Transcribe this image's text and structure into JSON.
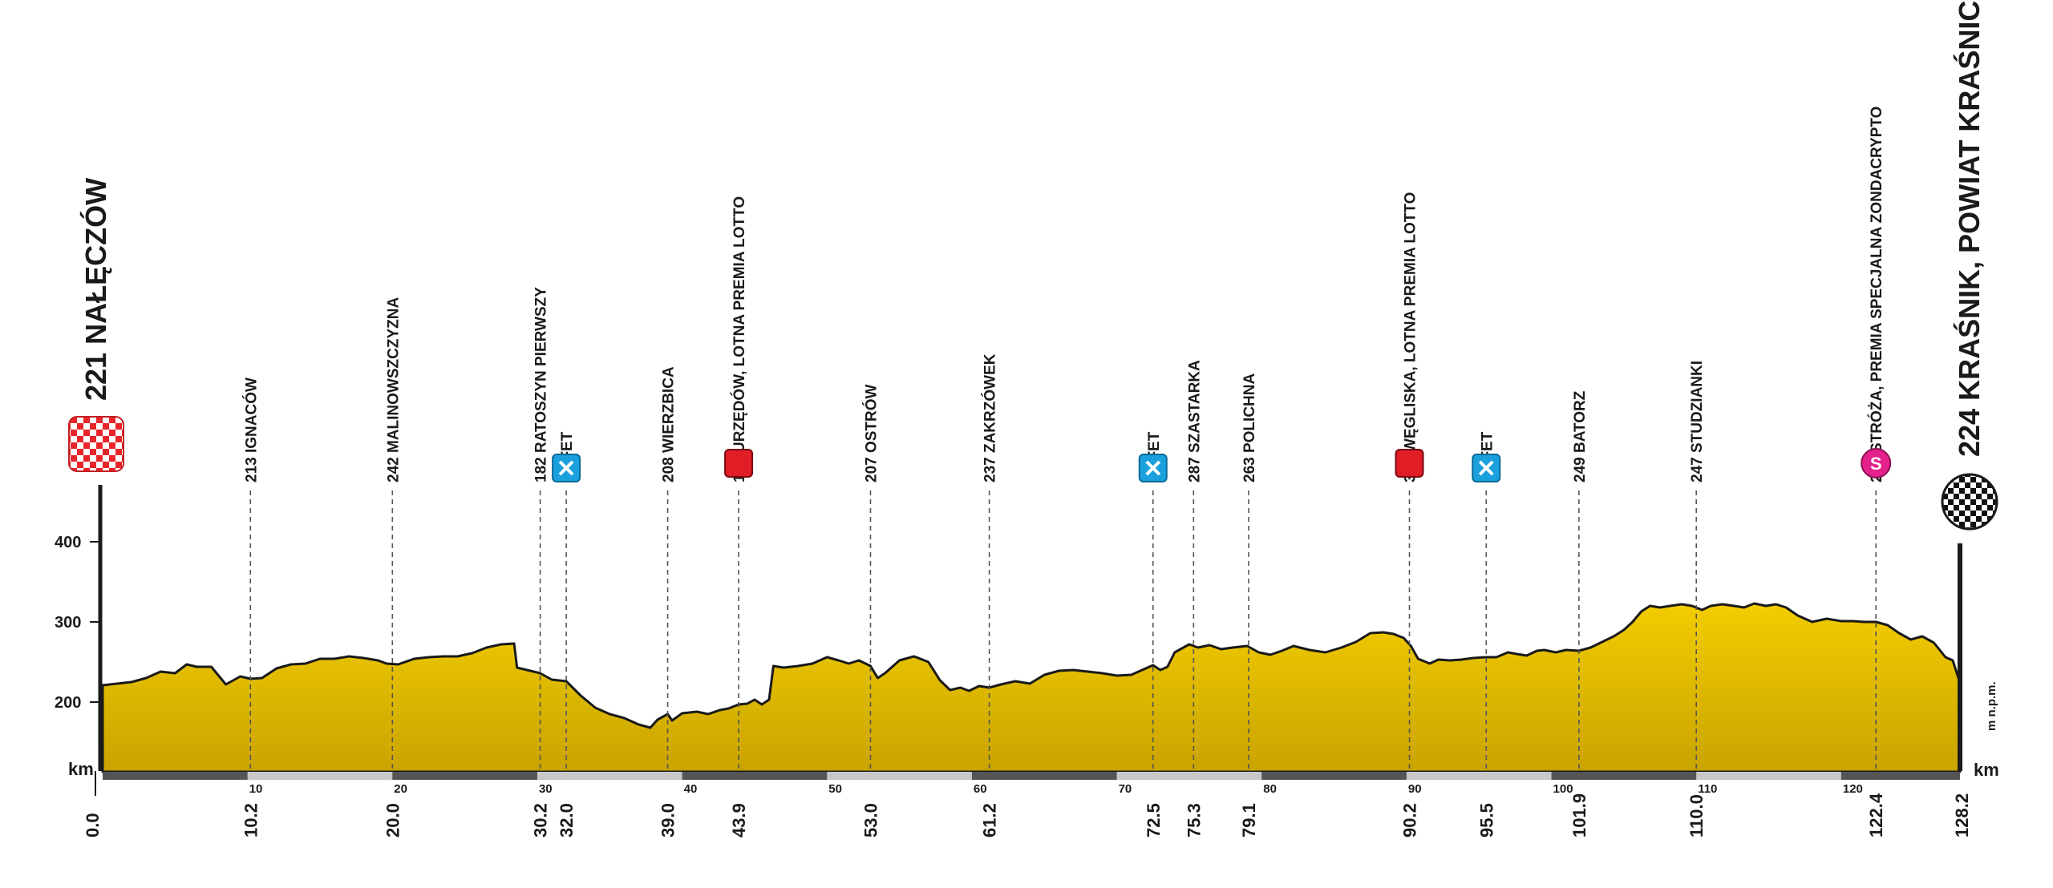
{
  "chart_data": {
    "type": "area",
    "title": "",
    "xlabel": "km",
    "ylabel": "m n.p.m.",
    "xlim": [
      0,
      128.2
    ],
    "ylim": [
      130,
      470
    ],
    "yticks": [
      200,
      300,
      400
    ],
    "xticks": [
      10,
      20,
      30,
      40,
      50,
      60,
      70,
      80,
      90,
      100,
      110,
      120
    ],
    "grid": false,
    "legend": "none",
    "colors": {
      "fill_top": "#f3cd00",
      "fill_bottom": "#c9a400",
      "line": "#1a1a1a"
    },
    "start": {
      "elevation": "221",
      "name": "NAŁĘCZÓW",
      "km": "0.0"
    },
    "finish": {
      "elevation": "224",
      "name": "KRAŚNIK, POWIAT KRAŚNICKI",
      "km": "128.2"
    },
    "points": [
      {
        "km": 10.2,
        "km_label": "10.2",
        "label": "213  IGNACÓW",
        "icon": ""
      },
      {
        "km": 20.0,
        "km_label": "20.0",
        "label": "242  MALINOWSZCZYZNA",
        "icon": ""
      },
      {
        "km": 30.2,
        "km_label": "30.2",
        "label": "182  RATOSZYN PIERWSZY",
        "icon": ""
      },
      {
        "km": 32.0,
        "km_label": "32.0",
        "label": "BUFET",
        "icon": "feed-zone-icon"
      },
      {
        "km": 39.0,
        "km_label": "39.0",
        "label": "208  WIERZBICA",
        "icon": ""
      },
      {
        "km": 43.9,
        "km_label": "43.9",
        "label": "185  URZĘDÓW, LOTNA PREMIA LOTTO",
        "icon": "intermediate-sprint-icon"
      },
      {
        "km": 53.0,
        "km_label": "53.0",
        "label": "207  OSTRÓW",
        "icon": ""
      },
      {
        "km": 61.2,
        "km_label": "61.2",
        "label": "237  ZAKRZÓWEK",
        "icon": ""
      },
      {
        "km": 72.5,
        "km_label": "72.5",
        "label": "BUFET",
        "icon": "feed-zone-icon"
      },
      {
        "km": 75.3,
        "km_label": "75.3",
        "label": "287  SZASTARKA",
        "icon": ""
      },
      {
        "km": 79.1,
        "km_label": "79.1",
        "label": "263  POLICHNA",
        "icon": ""
      },
      {
        "km": 90.2,
        "km_label": "90.2",
        "label": "300  WĘGLISKA, LOTNA PREMIA LOTTO",
        "icon": "intermediate-sprint-icon"
      },
      {
        "km": 95.5,
        "km_label": "95.5",
        "label": "BUFET",
        "icon": "feed-zone-icon"
      },
      {
        "km": 101.9,
        "km_label": "101.9",
        "label": "249  BATORZ",
        "icon": ""
      },
      {
        "km": 110.0,
        "km_label": "110.0",
        "label": "247  STUDZIANKI",
        "icon": ""
      },
      {
        "km": 122.4,
        "km_label": "122.4",
        "label": "234  STRÓŻA, PREMIA SPECJALNA ZONDACRYPTO",
        "icon": "special-premium-icon",
        "icon_text": "S"
      }
    ],
    "profile": [
      [
        0,
        221
      ],
      [
        2,
        225
      ],
      [
        3,
        230
      ],
      [
        4,
        238
      ],
      [
        5,
        236
      ],
      [
        5.8,
        247
      ],
      [
        6.5,
        244
      ],
      [
        7.5,
        244
      ],
      [
        8.5,
        222
      ],
      [
        9.5,
        232
      ],
      [
        10.2,
        229
      ],
      [
        11,
        230
      ],
      [
        12,
        242
      ],
      [
        13,
        247
      ],
      [
        14,
        248
      ],
      [
        15,
        254
      ],
      [
        16,
        254
      ],
      [
        17,
        257
      ],
      [
        18,
        255
      ],
      [
        19,
        252
      ],
      [
        19.6,
        248
      ],
      [
        20.4,
        247
      ],
      [
        21.5,
        254
      ],
      [
        22.5,
        256
      ],
      [
        23.5,
        257
      ],
      [
        24.5,
        257
      ],
      [
        25.5,
        261
      ],
      [
        26.5,
        268
      ],
      [
        27.5,
        272
      ],
      [
        28.4,
        273
      ],
      [
        28.6,
        243
      ],
      [
        29.3,
        240
      ],
      [
        30.2,
        236
      ],
      [
        31,
        228
      ],
      [
        32,
        226
      ],
      [
        33,
        208
      ],
      [
        34,
        193
      ],
      [
        35,
        185
      ],
      [
        36,
        180
      ],
      [
        37,
        172
      ],
      [
        37.8,
        168
      ],
      [
        38.3,
        178
      ],
      [
        39,
        185
      ],
      [
        39.3,
        177
      ],
      [
        40,
        186
      ],
      [
        41,
        188
      ],
      [
        41.8,
        185
      ],
      [
        42.6,
        190
      ],
      [
        43.2,
        192
      ],
      [
        43.9,
        197
      ],
      [
        44.5,
        198
      ],
      [
        45,
        203
      ],
      [
        45.5,
        197
      ],
      [
        46,
        203
      ],
      [
        46.3,
        245
      ],
      [
        47,
        243
      ],
      [
        48,
        245
      ],
      [
        49,
        248
      ],
      [
        50,
        256
      ],
      [
        50.8,
        252
      ],
      [
        51.5,
        248
      ],
      [
        52.2,
        252
      ],
      [
        53,
        245
      ],
      [
        53.5,
        230
      ],
      [
        54,
        236
      ],
      [
        55,
        252
      ],
      [
        56,
        257
      ],
      [
        57,
        250
      ],
      [
        57.8,
        227
      ],
      [
        58.5,
        215
      ],
      [
        59.2,
        218
      ],
      [
        59.8,
        214
      ],
      [
        60.5,
        220
      ],
      [
        61.2,
        218
      ],
      [
        62,
        222
      ],
      [
        63,
        226
      ],
      [
        64,
        223
      ],
      [
        65,
        234
      ],
      [
        66,
        239
      ],
      [
        67,
        240
      ],
      [
        68,
        238
      ],
      [
        69,
        236
      ],
      [
        70,
        233
      ],
      [
        71,
        234
      ],
      [
        72,
        242
      ],
      [
        72.5,
        246
      ],
      [
        73,
        240
      ],
      [
        73.5,
        244
      ],
      [
        74,
        262
      ],
      [
        75,
        272
      ],
      [
        75.6,
        268
      ],
      [
        76.4,
        271
      ],
      [
        77.2,
        266
      ],
      [
        78,
        268
      ],
      [
        79,
        270
      ],
      [
        79.8,
        262
      ],
      [
        80.6,
        259
      ],
      [
        81.4,
        264
      ],
      [
        82.2,
        270
      ],
      [
        83.3,
        265
      ],
      [
        84.4,
        262
      ],
      [
        85.5,
        268
      ],
      [
        86.5,
        275
      ],
      [
        87.5,
        286
      ],
      [
        88.4,
        287
      ],
      [
        89.1,
        285
      ],
      [
        89.8,
        280
      ],
      [
        90.3,
        270
      ],
      [
        90.8,
        254
      ],
      [
        91.6,
        248
      ],
      [
        92.2,
        253
      ],
      [
        93,
        252
      ],
      [
        93.8,
        253
      ],
      [
        94.6,
        255
      ],
      [
        95.5,
        256
      ],
      [
        96.2,
        256
      ],
      [
        97,
        262
      ],
      [
        97.6,
        260
      ],
      [
        98.3,
        258
      ],
      [
        99,
        264
      ],
      [
        99.5,
        265
      ],
      [
        100.3,
        262
      ],
      [
        101,
        265
      ],
      [
        101.9,
        264
      ],
      [
        102.7,
        268
      ],
      [
        103.5,
        275
      ],
      [
        104.3,
        282
      ],
      [
        105,
        290
      ],
      [
        105.6,
        300
      ],
      [
        106.2,
        313
      ],
      [
        106.8,
        320
      ],
      [
        107.5,
        318
      ],
      [
        108.2,
        320
      ],
      [
        109,
        322
      ],
      [
        109.7,
        320
      ],
      [
        110.4,
        315
      ],
      [
        111,
        320
      ],
      [
        111.8,
        322
      ],
      [
        112.6,
        320
      ],
      [
        113.3,
        318
      ],
      [
        114,
        323
      ],
      [
        114.8,
        320
      ],
      [
        115.5,
        322
      ],
      [
        116.2,
        318
      ],
      [
        117,
        308
      ],
      [
        118,
        300
      ],
      [
        119,
        304
      ],
      [
        120,
        301
      ],
      [
        120.8,
        301
      ],
      [
        121.6,
        300
      ],
      [
        122.4,
        300
      ],
      [
        123.2,
        296
      ],
      [
        124,
        286
      ],
      [
        124.8,
        278
      ],
      [
        125.6,
        282
      ],
      [
        126.4,
        274
      ],
      [
        127.2,
        256
      ],
      [
        127.7,
        252
      ],
      [
        128.2,
        224
      ]
    ]
  }
}
